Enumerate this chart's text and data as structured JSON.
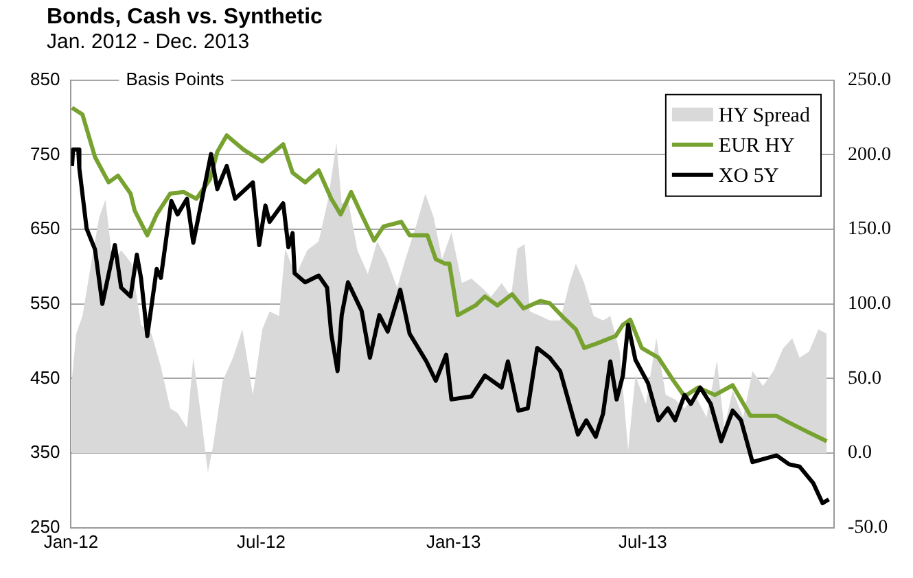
{
  "chart_data": {
    "type": "line",
    "title": "Bonds, Cash vs. Synthetic",
    "subtitle": "Jan. 2012 - Dec. 2013",
    "ylabel": "Basis Points",
    "xlim": [
      "2012-01-01",
      "2013-12-31"
    ],
    "xticks": [
      {
        "value": "2012-01-01",
        "label": "Jan-12"
      },
      {
        "value": "2012-07-01",
        "label": "Jul-12"
      },
      {
        "value": "2013-01-01",
        "label": "Jan-13"
      },
      {
        "value": "2013-07-01",
        "label": "Jul-13"
      }
    ],
    "ylim": [
      250,
      850
    ],
    "yticks": [
      250,
      350,
      450,
      550,
      650,
      750,
      850
    ],
    "y2lim": [
      -50,
      250
    ],
    "y2ticks": [
      {
        "value": -50,
        "label": "-50.0"
      },
      {
        "value": 0,
        "label": "0.0"
      },
      {
        "value": 50,
        "label": "50.0"
      },
      {
        "value": 100,
        "label": "100.0"
      },
      {
        "value": 150,
        "label": "150.0"
      },
      {
        "value": 200,
        "label": "200.0"
      },
      {
        "value": 250,
        "label": "250.0"
      }
    ],
    "grid": "y",
    "legend": "top right",
    "series": [
      {
        "name": "HY Spread",
        "type": "area",
        "axis": "y2",
        "color": "#d9d9d9",
        "x": [
          "2012-01-02",
          "2012-01-06",
          "2012-01-12",
          "2012-01-21",
          "2012-01-28",
          "2012-02-03",
          "2012-02-10",
          "2012-02-18",
          "2012-02-28",
          "2012-03-08",
          "2012-03-18",
          "2012-03-27",
          "2012-04-05",
          "2012-04-12",
          "2012-04-21",
          "2012-04-27",
          "2012-05-04",
          "2012-05-11",
          "2012-05-16",
          "2012-05-25",
          "2012-06-04",
          "2012-06-13",
          "2012-06-23",
          "2012-07-02",
          "2012-07-09",
          "2012-07-18",
          "2012-07-24",
          "2012-08-03",
          "2012-08-14",
          "2012-08-25",
          "2012-09-03",
          "2012-09-11",
          "2012-09-16",
          "2012-09-22",
          "2012-10-01",
          "2012-10-11",
          "2012-10-20",
          "2012-10-29",
          "2012-11-08",
          "2012-11-16",
          "2012-11-26",
          "2012-12-05",
          "2012-12-13",
          "2012-12-21",
          "2012-12-30",
          "2013-01-09",
          "2013-01-18",
          "2013-01-28",
          "2013-02-06",
          "2013-02-16",
          "2013-02-25",
          "2013-03-03",
          "2013-03-10",
          "2013-03-15",
          "2013-03-25",
          "2013-04-03",
          "2013-04-13",
          "2013-04-22",
          "2013-04-28",
          "2013-05-06",
          "2013-05-15",
          "2013-05-24",
          "2013-05-31",
          "2013-06-09",
          "2013-06-17",
          "2013-06-24",
          "2013-07-04",
          "2013-07-14",
          "2013-07-23",
          "2013-08-01",
          "2013-08-10",
          "2013-08-20",
          "2013-08-31",
          "2013-09-10",
          "2013-09-17",
          "2013-09-25",
          "2013-10-05",
          "2013-10-14",
          "2013-10-24",
          "2013-11-03",
          "2013-11-12",
          "2013-11-21",
          "2013-11-28",
          "2013-12-07",
          "2013-12-16",
          "2013-12-24"
        ],
        "values": [
          50,
          80,
          92,
          130,
          158,
          170,
          127,
          136,
          127,
          86,
          80,
          58,
          30,
          27,
          17,
          64,
          27,
          -13,
          5,
          48,
          64,
          83,
          39,
          83,
          95,
          92,
          137,
          119,
          136,
          142,
          170,
          208,
          167,
          170,
          136,
          120,
          142,
          130,
          111,
          130,
          152,
          174,
          158,
          130,
          148,
          114,
          117,
          111,
          105,
          114,
          105,
          137,
          140,
          95,
          92,
          89,
          89,
          114,
          127,
          114,
          92,
          89,
          92,
          68,
          2,
          52,
          33,
          77,
          39,
          36,
          30,
          39,
          24,
          62,
          17,
          42,
          24,
          55,
          45,
          55,
          70,
          77,
          64,
          68,
          83,
          80
        ]
      },
      {
        "name": "EUR HY",
        "type": "line",
        "color": "#77a22f",
        "x": [
          "2012-01-02",
          "2012-01-12",
          "2012-01-24",
          "2012-02-06",
          "2012-02-15",
          "2012-02-27",
          "2012-03-02",
          "2012-03-14",
          "2012-03-23",
          "2012-04-05",
          "2012-04-18",
          "2012-04-30",
          "2012-05-13",
          "2012-05-20",
          "2012-05-29",
          "2012-06-14",
          "2012-07-02",
          "2012-07-22",
          "2012-07-31",
          "2012-08-12",
          "2012-08-25",
          "2012-09-06",
          "2012-09-15",
          "2012-09-25",
          "2012-10-05",
          "2012-10-17",
          "2012-10-26",
          "2012-11-12",
          "2012-11-20",
          "2012-12-07",
          "2012-12-15",
          "2012-12-24",
          "2012-12-28",
          "2013-01-05",
          "2013-01-22",
          "2013-01-31",
          "2013-02-12",
          "2013-02-26",
          "2013-03-09",
          "2013-03-25",
          "2013-04-03",
          "2013-04-16",
          "2013-04-28",
          "2013-05-06",
          "2013-05-18",
          "2013-06-05",
          "2013-06-12",
          "2013-06-19",
          "2013-06-30",
          "2013-07-16",
          "2013-07-29",
          "2013-08-10",
          "2013-08-23",
          "2013-09-08",
          "2013-09-25",
          "2013-10-12",
          "2013-11-06",
          "2013-11-18",
          "2013-12-05",
          "2013-12-24"
        ],
        "values": [
          813,
          804,
          747,
          713,
          722,
          698,
          675,
          642,
          670,
          698,
          700,
          691,
          717,
          754,
          776,
          757,
          741,
          764,
          726,
          713,
          729,
          691,
          670,
          700,
          670,
          635,
          654,
          660,
          642,
          642,
          610,
          604,
          604,
          535,
          548,
          560,
          548,
          563,
          544,
          554,
          551,
          532,
          516,
          491,
          497,
          507,
          522,
          529,
          491,
          478,
          450,
          426,
          438,
          428,
          441,
          400,
          400,
          391,
          379,
          366
        ]
      },
      {
        "name": "XO 5Y",
        "type": "line",
        "color": "#000000",
        "x": [
          "2012-01-02",
          "2012-01-03",
          "2012-01-08",
          "2012-01-09",
          "2012-01-16",
          "2012-01-24",
          "2012-01-31",
          "2012-02-12",
          "2012-02-18",
          "2012-02-27",
          "2012-03-04",
          "2012-03-08",
          "2012-03-14",
          "2012-03-23",
          "2012-03-27",
          "2012-04-06",
          "2012-04-12",
          "2012-04-21",
          "2012-04-27",
          "2012-05-14",
          "2012-05-20",
          "2012-05-29",
          "2012-06-06",
          "2012-06-23",
          "2012-06-29",
          "2012-07-05",
          "2012-07-09",
          "2012-07-22",
          "2012-07-27",
          "2012-07-31",
          "2012-08-02",
          "2012-08-12",
          "2012-08-25",
          "2012-09-02",
          "2012-09-06",
          "2012-09-12",
          "2012-09-16",
          "2012-09-22",
          "2012-10-05",
          "2012-10-13",
          "2012-10-22",
          "2012-10-30",
          "2012-11-11",
          "2012-11-20",
          "2012-12-06",
          "2012-12-15",
          "2012-12-25",
          "2012-12-30",
          "2013-01-18",
          "2013-01-31",
          "2013-02-16",
          "2013-02-22",
          "2013-03-04",
          "2013-03-13",
          "2013-03-22",
          "2013-04-03",
          "2013-04-13",
          "2013-04-30",
          "2013-05-08",
          "2013-05-17",
          "2013-05-24",
          "2013-05-31",
          "2013-06-06",
          "2013-06-12",
          "2013-06-17",
          "2013-06-24",
          "2013-07-06",
          "2013-07-16",
          "2013-07-25",
          "2013-08-01",
          "2013-08-10",
          "2013-08-16",
          "2013-08-25",
          "2013-09-04",
          "2013-09-14",
          "2013-09-25",
          "2013-10-03",
          "2013-10-14",
          "2013-11-06",
          "2013-11-18",
          "2013-11-28",
          "2013-12-11",
          "2013-12-20",
          "2013-12-26"
        ],
        "values": [
          735,
          757,
          757,
          732,
          651,
          623,
          550,
          629,
          572,
          560,
          616,
          585,
          507,
          597,
          585,
          688,
          670,
          691,
          632,
          751,
          704,
          735,
          691,
          713,
          629,
          682,
          660,
          685,
          626,
          645,
          591,
          579,
          588,
          572,
          510,
          460,
          535,
          579,
          541,
          478,
          535,
          513,
          569,
          510,
          473,
          447,
          482,
          422,
          426,
          454,
          438,
          473,
          407,
          410,
          491,
          478,
          460,
          375,
          394,
          372,
          403,
          473,
          422,
          454,
          522,
          475,
          444,
          394,
          410,
          394,
          428,
          416,
          438,
          416,
          366,
          407,
          394,
          338,
          347,
          335,
          332,
          310,
          283,
          288
        ]
      }
    ]
  }
}
